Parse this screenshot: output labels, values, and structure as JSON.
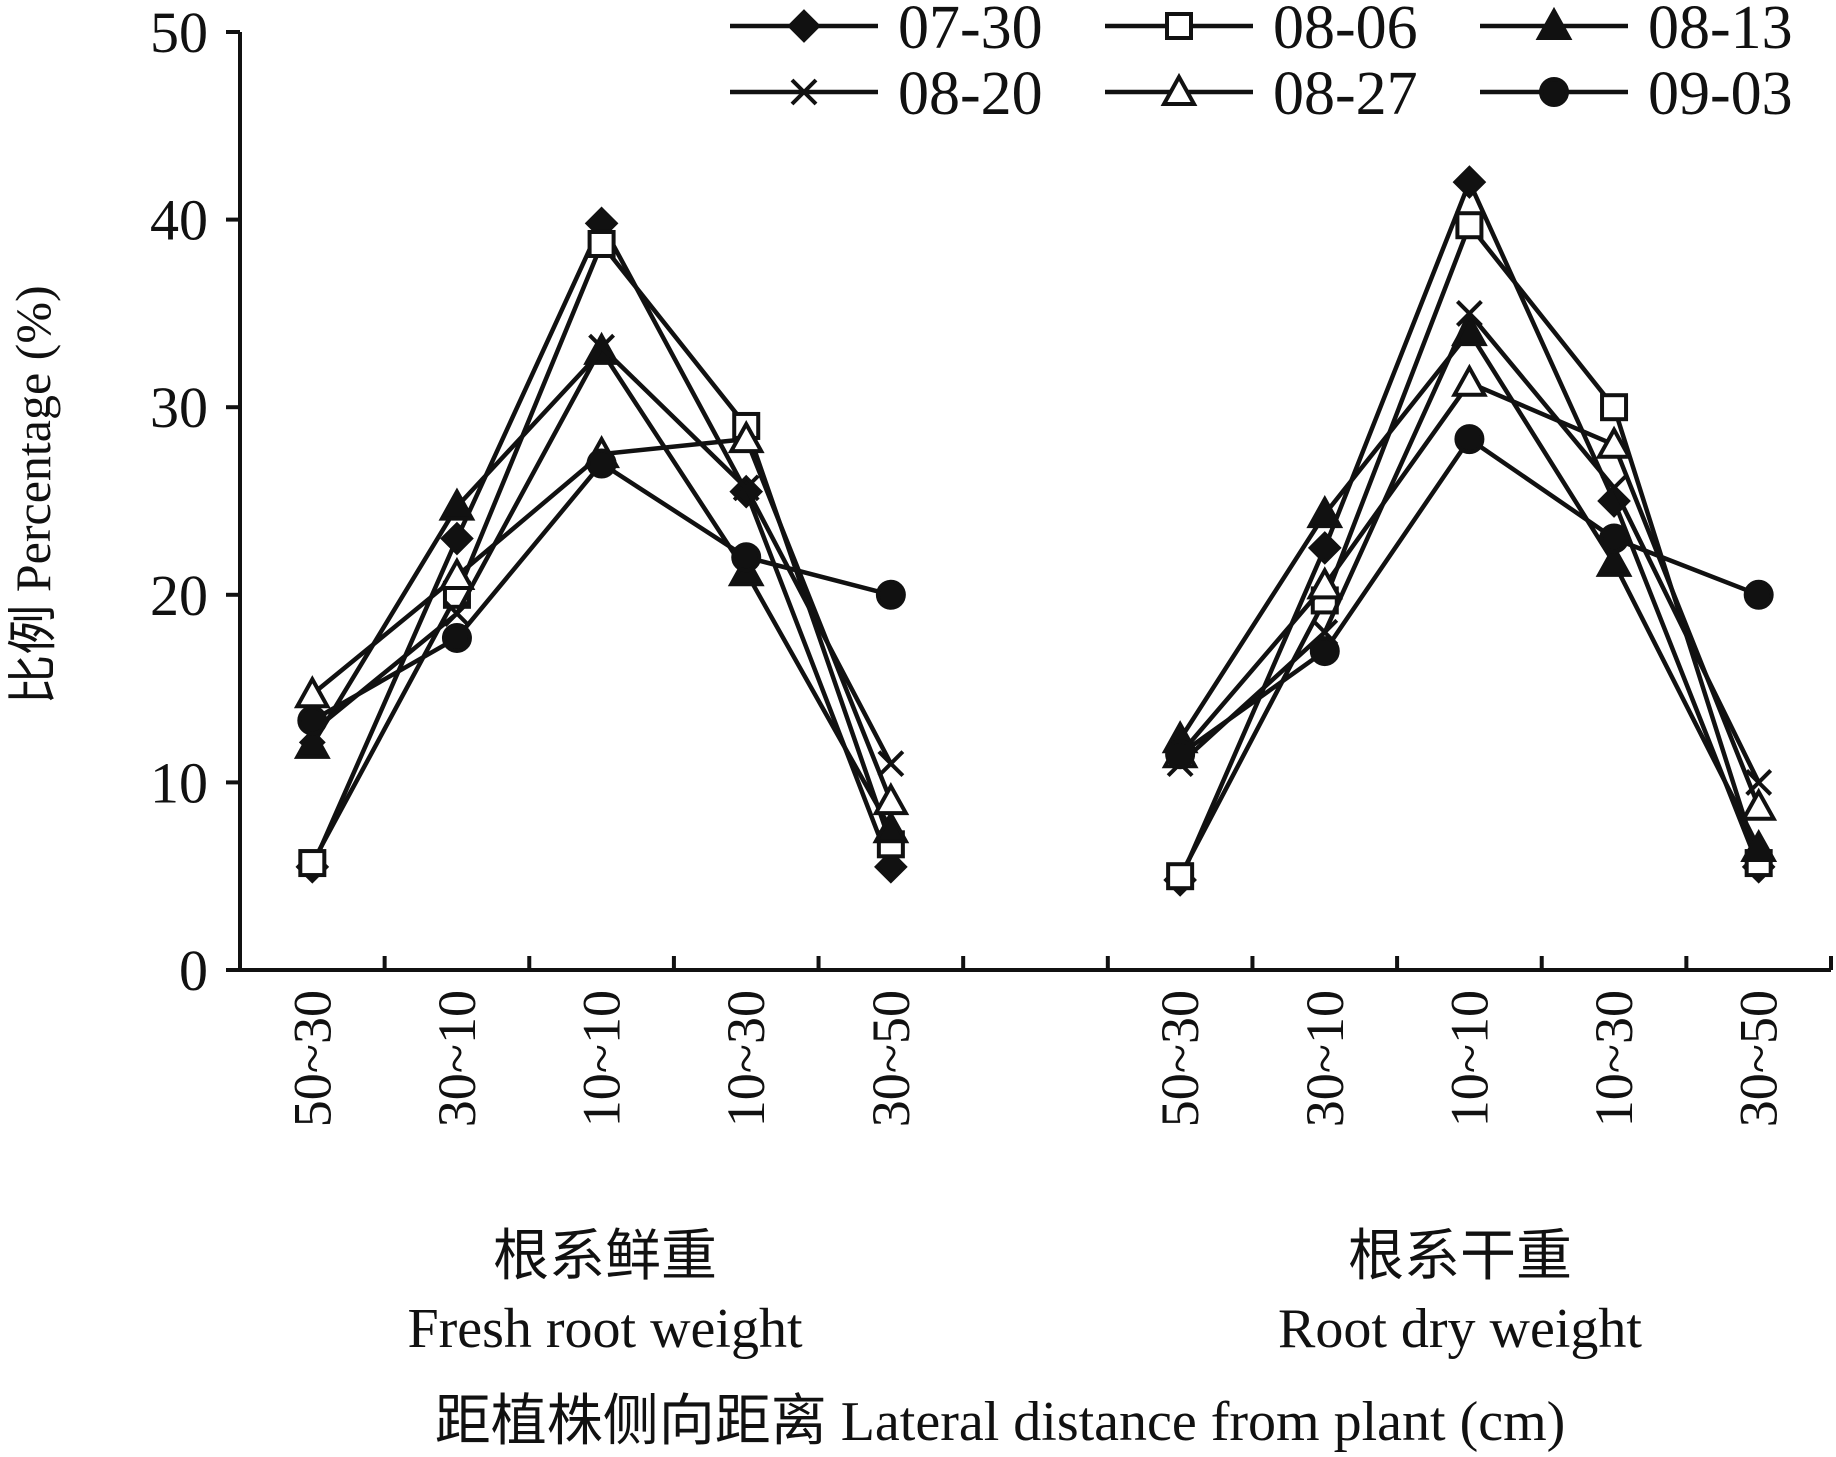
{
  "chart_data": {
    "type": "line",
    "title": "",
    "ylabel": "比例 Percentage (%)",
    "xlabel": "距植株侧向距离 Lateral distance from plant (cm)",
    "ylim": [
      0,
      50
    ],
    "yticks": [
      0,
      10,
      20,
      30,
      40,
      50
    ],
    "groups": [
      {
        "label_cn": "根系鲜重",
        "label_en": "Fresh root weight"
      },
      {
        "label_cn": "根系干重",
        "label_en": "Root dry weight"
      }
    ],
    "categories": [
      "50~30",
      "30~10",
      "10~10",
      "10~30",
      "30~50"
    ],
    "legend_position": "top-right",
    "series": [
      {
        "name": "07-30",
        "marker": "diamond",
        "values": [
          [
            5.5,
            23.0,
            39.8,
            25.5,
            5.5
          ],
          [
            4.8,
            22.5,
            42.0,
            25.0,
            5.5
          ]
        ]
      },
      {
        "name": "08-06",
        "marker": "square-open",
        "values": [
          [
            5.7,
            20.0,
            38.7,
            29.0,
            6.7
          ],
          [
            5.0,
            19.7,
            39.7,
            30.0,
            5.7
          ]
        ]
      },
      {
        "name": "08-13",
        "marker": "triangle",
        "values": [
          [
            12.0,
            24.7,
            33.0,
            21.2,
            7.5
          ],
          [
            12.3,
            24.3,
            34.0,
            21.7,
            6.5
          ]
        ]
      },
      {
        "name": "08-20",
        "marker": "cross",
        "values": [
          [
            12.7,
            19.0,
            33.2,
            25.7,
            11.0
          ],
          [
            11.0,
            18.0,
            35.0,
            25.7,
            10.0
          ]
        ]
      },
      {
        "name": "08-27",
        "marker": "triangle-open",
        "values": [
          [
            14.7,
            21.0,
            27.5,
            28.3,
            9.0
          ],
          [
            11.5,
            20.5,
            31.3,
            28.0,
            8.7
          ]
        ]
      },
      {
        "name": "09-03",
        "marker": "circle",
        "values": [
          [
            13.3,
            17.7,
            27.0,
            22.0,
            20.0
          ],
          [
            11.5,
            17.0,
            28.3,
            23.0,
            20.0
          ]
        ]
      }
    ]
  }
}
